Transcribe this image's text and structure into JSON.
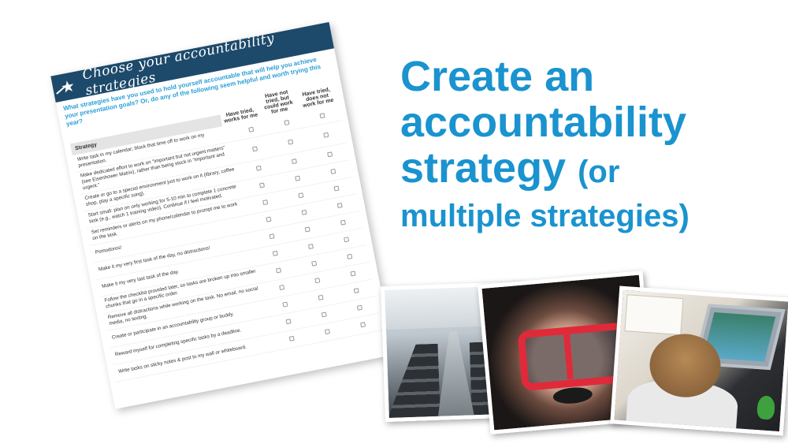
{
  "headline": {
    "line1": "Create an",
    "line2": "accountability",
    "line3_main": "strategy",
    "line3_small": "(or",
    "line4": "multiple strategies)"
  },
  "worksheet": {
    "title": "Choose your accountability strategies",
    "question": "What strategies have you used to hold yourself accountable that will help you achieve your presentation goals? Or, do any of the following seem helpful and worth trying this year?",
    "columns": {
      "strategy": "Strategy",
      "opt1": "Have tried, works for me",
      "opt2": "Have not tried, but could work for me",
      "opt3": "Have tried, does not work for me"
    },
    "rows": [
      "Write task in my calendar; block that time off to work on my presentation.",
      "Make dedicated effort to work on \"important but not urgent matters\" (see Eisenhower Matrix), rather than being stuck in \"important and urgent.\"",
      "Create or go to a special environment just to work on it (library, coffee shop, play a specific song).",
      "Start small: plan on only working for 5-10 min to complete 1 concrete task (e.g., watch 1 training video). Continue if I feel motivated.",
      "Set reminders or alerts on my phone/calendar to prompt me to work on the task.",
      "Pomodoros!",
      "Make it my very first task of the day, no distractions!",
      "Make it my very last task of the day.",
      "Follow the checklist provided later, so tasks are broken up into smaller chunks that go in a specific order.",
      "Remove all distractions while working on the task. No email, no social media, no texting.",
      "Create or participate in an accountability group or buddy.",
      "Reward myself for completing specific tasks by a deadline.",
      "Write tasks on sticky notes & post to my wall or whiteboard."
    ]
  },
  "colors": {
    "accent": "#1a93cf",
    "banner": "#1d4a6b",
    "goggle": "#e02a3a"
  }
}
